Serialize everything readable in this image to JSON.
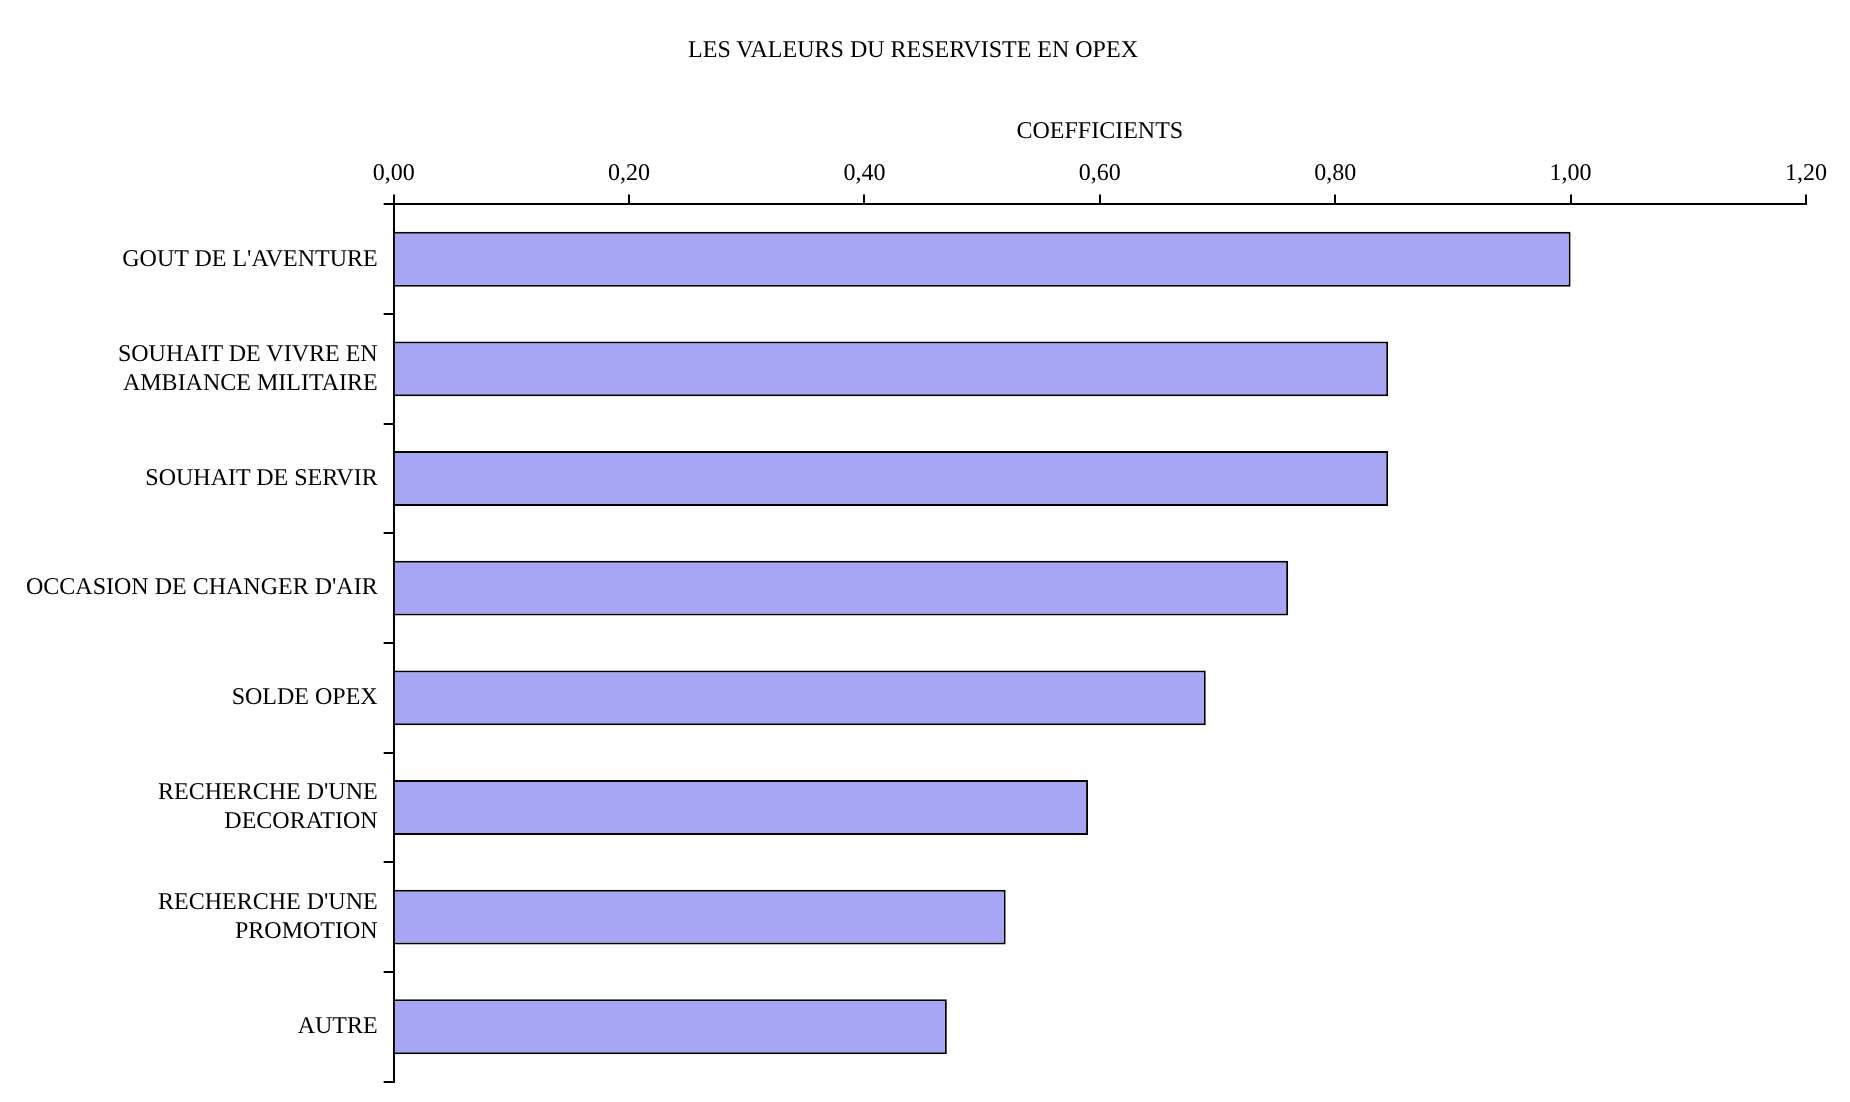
{
  "chart_data": {
    "type": "bar",
    "orientation": "horizontal",
    "title": "LES VALEURS DU RESERVISTE EN OPEX",
    "xlabel": "COEFFICIENTS",
    "categories": [
      "GOUT DE L'AVENTURE",
      "SOUHAIT DE VIVRE EN AMBIANCE MILITAIRE",
      "SOUHAIT DE SERVIR",
      "OCCASION DE CHANGER D'AIR",
      "SOLDE OPEX",
      "RECHERCHE D'UNE DECORATION",
      "RECHERCHE D'UNE PROMOTION",
      "AUTRE"
    ],
    "values": [
      1.0,
      0.845,
      0.845,
      0.76,
      0.69,
      0.59,
      0.52,
      0.47
    ],
    "color": "#a6a6f5",
    "xlim": [
      0,
      1.2
    ],
    "xticks": [
      {
        "value": 0,
        "label": "0,00"
      },
      {
        "value": 0.2,
        "label": "0,20"
      },
      {
        "value": 0.4,
        "label": "0,40"
      },
      {
        "value": 0.6,
        "label": "0,60"
      },
      {
        "value": 0.8,
        "label": "0,80"
      },
      {
        "value": 1.0,
        "label": "1,00"
      },
      {
        "value": 1.2,
        "label": "1,20"
      }
    ],
    "grid": false,
    "legend": false
  }
}
